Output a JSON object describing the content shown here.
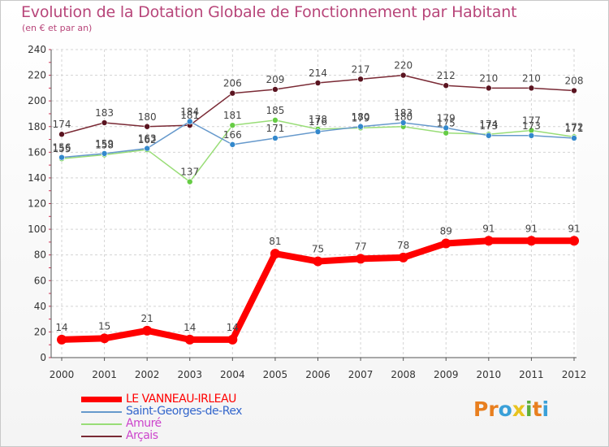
{
  "title": "Evolution de la Dotation Globale de Fonctionnement par Habitant",
  "subtitle": "(en € et par an)",
  "logo": {
    "text": "Proxiti",
    "letters": [
      "P",
      "r",
      "o",
      "x",
      "i",
      "t",
      "i"
    ],
    "colors": [
      "#e87f1f",
      "#e87f1f",
      "#3aa0d8",
      "#e8c31f",
      "#5cae3a",
      "#e87f1f",
      "#3aa0d8"
    ]
  },
  "chart_data": {
    "type": "line",
    "title": "Evolution de la Dotation Globale de Fonctionnement par Habitant",
    "ylabel": "(en € et par an)",
    "xlabel": "",
    "ylim": [
      0,
      240
    ],
    "yticks": [
      0,
      20,
      40,
      60,
      80,
      100,
      120,
      140,
      160,
      180,
      200,
      220,
      240
    ],
    "categories": [
      "2000",
      "2001",
      "2002",
      "2003",
      "2004",
      "2005",
      "2006",
      "2007",
      "2008",
      "2009",
      "2010",
      "2011",
      "2012"
    ],
    "grid": true,
    "series": [
      {
        "name": "Arçais",
        "color": "#7a2a35",
        "marker": "#5a1420",
        "values": [
          174,
          183,
          180,
          181,
          206,
          209,
          214,
          217,
          220,
          212,
          210,
          210,
          208
        ]
      },
      {
        "name": "Amuré",
        "color": "#99dd77",
        "marker": "#66cc44",
        "values": [
          155,
          158,
          162,
          137,
          181,
          185,
          178,
          179,
          180,
          175,
          174,
          177,
          172
        ]
      },
      {
        "name": "Saint-Georges-de-Rex",
        "color": "#6699cc",
        "marker": "#3388cc",
        "values": [
          156,
          159,
          163,
          184,
          166,
          171,
          176,
          180,
          183,
          179,
          173,
          173,
          171
        ]
      },
      {
        "name": "LE VANNEAU-IRLEAU",
        "color": "#ff0000",
        "marker": "#ff0000",
        "values": [
          14,
          15,
          21,
          14,
          14,
          81,
          75,
          77,
          78,
          89,
          91,
          91,
          91
        ]
      }
    ]
  }
}
